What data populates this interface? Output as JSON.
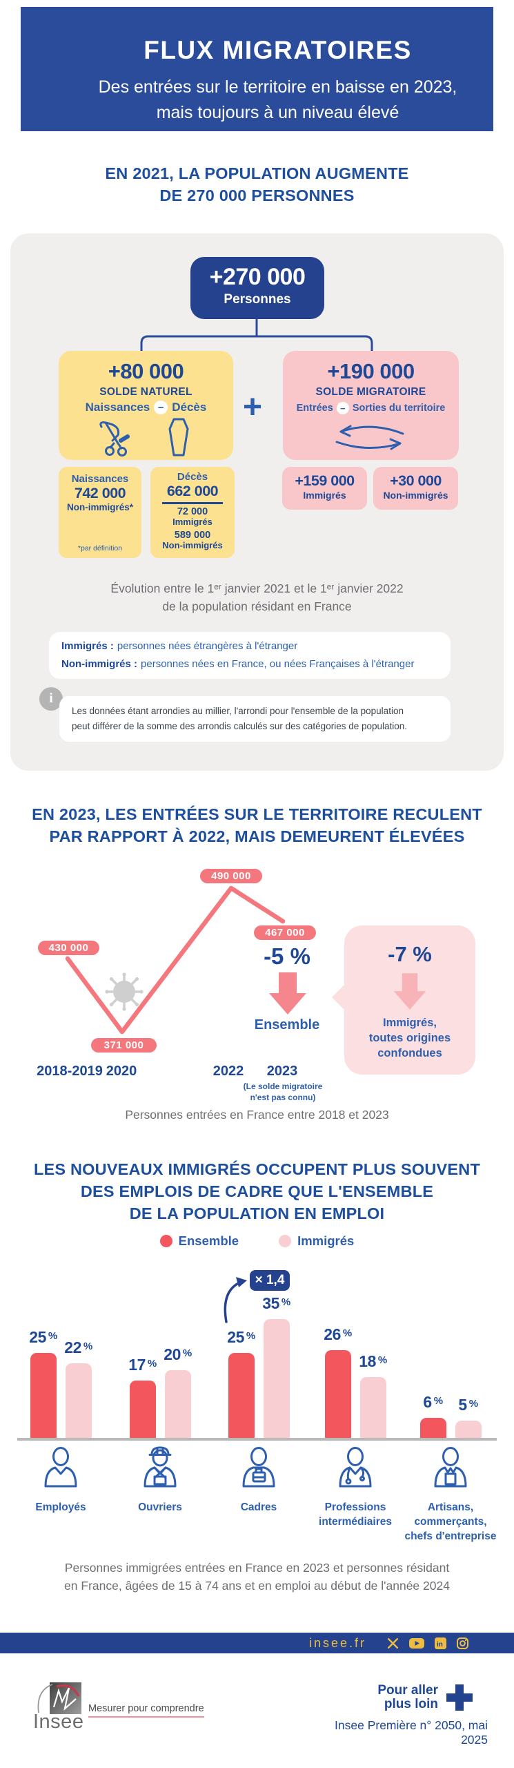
{
  "palette": {
    "blue_header": "#2b4c9b",
    "blue_dark": "#24428d",
    "blue_text": "#1e4896",
    "blue_medium": "#2d5fae",
    "red": "#f4565e",
    "red_line": "#f4777d",
    "pink": "#f9c7ca",
    "pink_pale": "#fcdfe1",
    "pink_bar": "#f9ced2",
    "yellow": "#fbe190",
    "gold": "#eebd3f",
    "card_gray": "#f0efee",
    "caption_gray": "#6e6e73"
  },
  "header": {
    "title": "FLUX MIGRATOIRES",
    "subtitle_lines": [
      "Des entrées sur le territoire en baisse en 2023,",
      "mais toujours à un niveau élevé"
    ]
  },
  "section1": {
    "title_lines": [
      "EN 2021, LA POPULATION AUGMENTE",
      "DE 270 000 PERSONNES"
    ],
    "total": {
      "value": "+270 000",
      "label": "Personnes"
    },
    "plus": "+",
    "minus": "−",
    "natural": {
      "value": "+80 000",
      "label": "SOLDE NATUREL",
      "left": "Naissances",
      "right": "Décès"
    },
    "migratory": {
      "value": "+190 000",
      "label": "SOLDE MIGRATOIRE",
      "left": "Entrées",
      "right": "Sorties du territoire"
    },
    "births": {
      "label": "Naissances",
      "value": "742 000",
      "sub": "Non-immigrés*",
      "footnote": "*par définition"
    },
    "deaths": {
      "label": "Décès",
      "value": "662 000",
      "split": [
        {
          "value": "72 000",
          "label": "Immigrés"
        },
        {
          "value": "589 000",
          "label": "Non-immigrés"
        }
      ]
    },
    "migratory_split": [
      {
        "value": "+159 000",
        "label": "Immigrés"
      },
      {
        "value": "+30 000",
        "label": "Non-immigrés"
      }
    ],
    "caption_lines": [
      "Évolution entre le 1ᵉʳ janvier 2021 et le 1ᵉʳ janvier 2022",
      "de la population résidant en France"
    ],
    "definitions": [
      {
        "term": "Immigrés :",
        "text": "personnes nées étrangères à l'étranger"
      },
      {
        "term": "Non-immigrés :",
        "text": "personnes nées en France, ou nées Françaises à l'étranger"
      }
    ],
    "info_icon": "i",
    "note_lines": [
      "Les données étant arrondies au millier, l'arrondi pour l'ensemble de la population",
      "peut différer de la somme des arrondis calculés sur des catégories de population."
    ]
  },
  "section2": {
    "title_lines": [
      "EN 2023, LES ENTRÉES SUR LE TERRITOIRE RECULENT",
      "PAR RAPPORT À 2022, MAIS DEMEURENT ÉLEVÉES"
    ],
    "deltas": {
      "ensemble": {
        "value": "-5 %",
        "label": "Ensemble"
      },
      "immigres": {
        "value": "-7 %",
        "label_lines": [
          "Immigrés,",
          "toutes origines",
          "confondues"
        ]
      }
    },
    "note_2023_lines": [
      "(Le solde migratoire",
      "n'est pas connu)"
    ],
    "caption": "Personnes entrées en France entre 2018 et 2023"
  },
  "section3": {
    "title_lines": [
      "LES NOUVEAUX IMMIGRÉS OCCUPENT PLUS SOUVENT",
      "DES EMPLOIS DE CADRE QUE L'ENSEMBLE",
      "DE LA POPULATION EN EMPLOI"
    ],
    "legend": [
      {
        "label": "Ensemble",
        "color": "#f4565e"
      },
      {
        "label": "Immigrés",
        "color": "#f9ced2"
      }
    ],
    "multiplier": "× 1,4",
    "category_label_lines": [
      [
        "Employés"
      ],
      [
        "Ouvriers"
      ],
      [
        "Cadres"
      ],
      [
        "Professions",
        "intermédiaires"
      ],
      [
        "Artisans,",
        "commerçants,",
        "chefs d'entreprise"
      ]
    ],
    "caption_lines": [
      "Personnes immigrées entrées en France en 2023 et personnes résidant",
      "en France, âgées de 15 à 74 ans et en emploi au début de l'année 2024"
    ]
  },
  "chart_data": [
    {
      "type": "line",
      "title": "Personnes entrées en France entre 2018 et 2023",
      "x": [
        "2018-2019",
        "2020",
        "2022",
        "2023"
      ],
      "values": [
        430000,
        371000,
        490000,
        467000
      ],
      "point_labels": [
        "430 000",
        "371 000",
        "490 000",
        "467 000"
      ],
      "annotations": [
        "-5 % Ensemble",
        "-7 % Immigrés, toutes origines confondues",
        "(Le solde migratoire n'est pas connu)",
        "covid-icon sur la baisse 2020"
      ],
      "legend_position": "none",
      "grid": false
    },
    {
      "type": "bar",
      "title": "Répartition par catégorie socioprofessionnelle",
      "categories": [
        "Employés",
        "Ouvriers",
        "Cadres",
        "Professions intermédiaires",
        "Artisans, commerçants, chefs d'entreprise"
      ],
      "series": [
        {
          "name": "Ensemble",
          "values": [
            25,
            17,
            25,
            26,
            6
          ]
        },
        {
          "name": "Immigrés",
          "values": [
            22,
            20,
            35,
            18,
            5
          ]
        }
      ],
      "unit": "%",
      "ylim": [
        0,
        40
      ],
      "grid": false,
      "legend_position": "top",
      "annotation": "× 1,4"
    }
  ],
  "footer": {
    "site": "insee.fr",
    "social": [
      "x-icon",
      "youtube-icon",
      "linkedin-icon",
      "instagram-icon"
    ],
    "logo_text": "Insee",
    "tagline": "Mesurer pour comprendre",
    "more_lines": [
      "Pour aller",
      "plus loin"
    ],
    "publication": "Insee Première n° 2050, mai 2025"
  }
}
